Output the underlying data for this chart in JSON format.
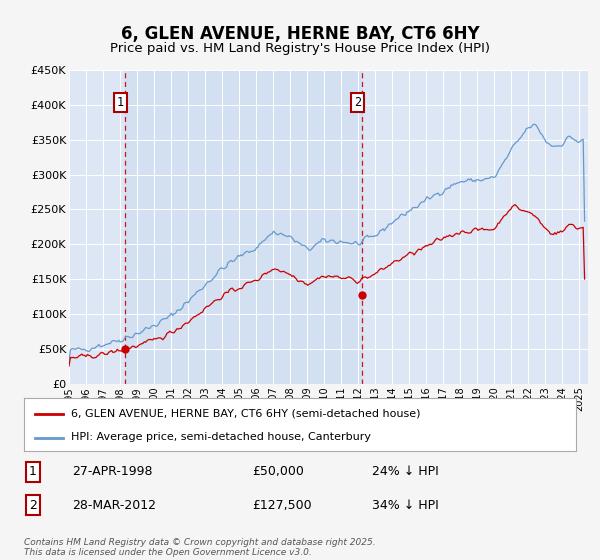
{
  "title": "6, GLEN AVENUE, HERNE BAY, CT6 6HY",
  "subtitle": "Price paid vs. HM Land Registry's House Price Index (HPI)",
  "title_fontsize": 12,
  "subtitle_fontsize": 9.5,
  "background_color": "#f5f5f5",
  "plot_background_color": "#dce6f5",
  "shaded_region_color": "#ccdcf0",
  "ylabel": "",
  "xlabel": "",
  "ylim": [
    0,
    450000
  ],
  "yticks": [
    0,
    50000,
    100000,
    150000,
    200000,
    250000,
    300000,
    350000,
    400000,
    450000
  ],
  "ytick_labels": [
    "£0",
    "£50K",
    "£100K",
    "£150K",
    "£200K",
    "£250K",
    "£300K",
    "£350K",
    "£400K",
    "£450K"
  ],
  "xlim_start": 1995.0,
  "xlim_end": 2025.5,
  "sale1_x": 1998.32,
  "sale1_y": 50000,
  "sale1_label": "1",
  "sale2_x": 2012.24,
  "sale2_y": 127500,
  "sale2_label": "2",
  "red_line_color": "#cc0000",
  "blue_line_color": "#6699cc",
  "dashed_line_color": "#cc0000",
  "legend_label_red": "6, GLEN AVENUE, HERNE BAY, CT6 6HY (semi-detached house)",
  "legend_label_blue": "HPI: Average price, semi-detached house, Canterbury",
  "table_row1": [
    "1",
    "27-APR-1998",
    "£50,000",
    "24% ↓ HPI"
  ],
  "table_row2": [
    "2",
    "28-MAR-2012",
    "£127,500",
    "34% ↓ HPI"
  ],
  "footer": "Contains HM Land Registry data © Crown copyright and database right 2025.\nThis data is licensed under the Open Government Licence v3.0."
}
